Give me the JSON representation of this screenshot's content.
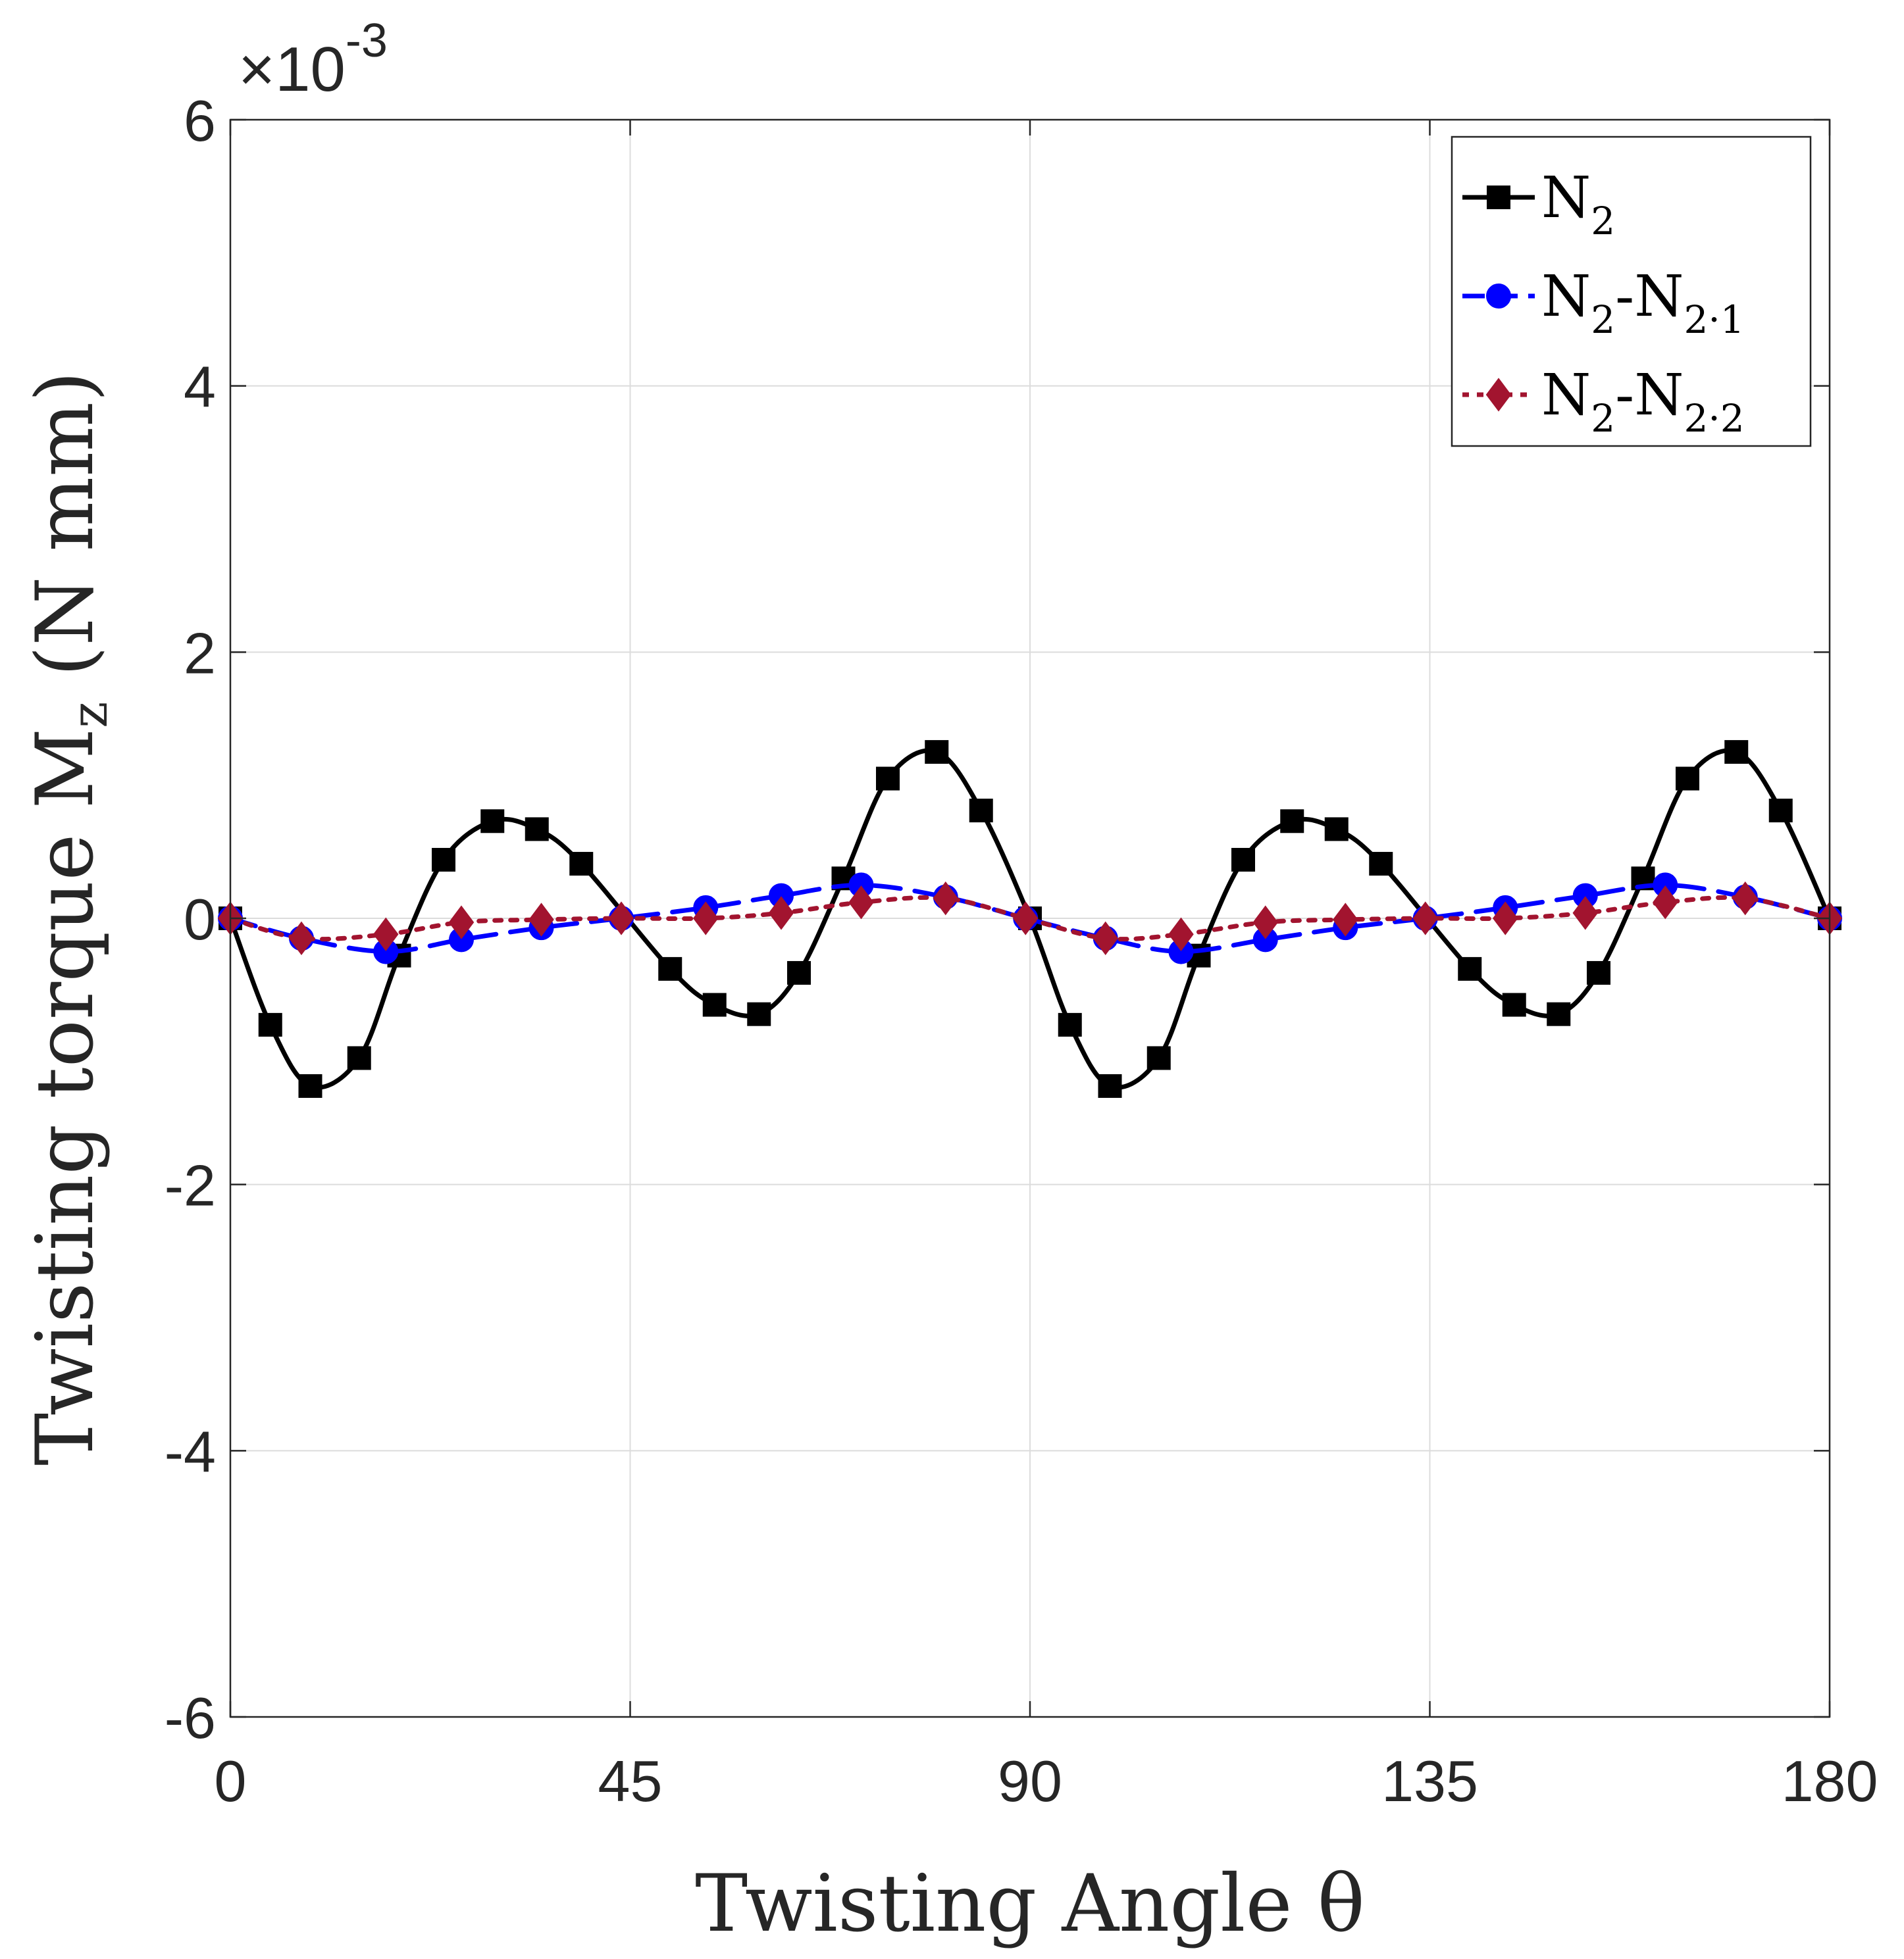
{
  "chart_data": {
    "type": "line",
    "title": "",
    "xlabel": "Twisting Angle θ",
    "ylabel": "Twisting torque M_z (N mm)",
    "ylabel_parts": {
      "prefix": "Twisting torque M",
      "sub": "z",
      "suffix": " (N mm)"
    },
    "x_exponent_label": {
      "base": "×10",
      "exp": "-3"
    },
    "xlim": [
      0,
      180
    ],
    "ylim": [
      -6,
      6
    ],
    "y_scale_factor": 0.001,
    "xticks": [
      0,
      45,
      90,
      135,
      180
    ],
    "xtick_labels": [
      "0",
      "45",
      "90",
      "135",
      "180"
    ],
    "yticks": [
      -6,
      -4,
      -2,
      0,
      2,
      4,
      6
    ],
    "ytick_labels": [
      "-6",
      "-4",
      "-2",
      "0",
      "2",
      "4",
      "6"
    ],
    "grid": true,
    "legend_position": "top-right",
    "series": [
      {
        "name": "N2",
        "label_parts": [
          {
            "t": "N"
          },
          {
            "t": "2",
            "sub": true
          }
        ],
        "color": "#000000",
        "line_style": "solid",
        "marker": "square",
        "x": [
          0,
          4.5,
          9,
          14.5,
          19,
          24,
          29.5,
          34.5,
          39.5,
          49.5,
          54.5,
          59.5,
          64,
          69,
          74,
          79.5,
          84.5,
          90,
          94.5,
          99,
          104.5,
          109,
          114,
          119.5,
          124.5,
          129.5,
          139.5,
          144.5,
          149.5,
          154,
          159,
          164,
          169.5,
          174.5,
          180
        ],
        "y": [
          0,
          -0.8,
          -1.26,
          -1.05,
          -0.28,
          0.44,
          0.73,
          0.67,
          0.41,
          -0.38,
          -0.65,
          -0.72,
          -0.41,
          0.3,
          1.05,
          1.25,
          0.81,
          0,
          -0.8,
          -1.26,
          -1.05,
          -0.28,
          0.44,
          0.73,
          0.67,
          0.41,
          -0.38,
          -0.65,
          -0.72,
          -0.41,
          0.3,
          1.05,
          1.25,
          0.81,
          0
        ]
      },
      {
        "name": "N2-N2·1",
        "label_parts": [
          {
            "t": "N"
          },
          {
            "t": "2",
            "sub": true
          },
          {
            "t": "-N"
          },
          {
            "t": "2·1",
            "sub": true
          }
        ],
        "color": "#0000ff",
        "line_style": "dashed",
        "marker": "circle",
        "x": [
          0,
          8,
          17.5,
          26,
          35,
          44,
          53.5,
          62,
          71,
          80.5,
          89.5,
          98.5,
          107,
          116.5,
          125.5,
          134.5,
          143.5,
          152.5,
          161.5,
          170.5,
          180
        ],
        "y": [
          0,
          -0.15,
          -0.25,
          -0.16,
          -0.07,
          0,
          0.08,
          0.17,
          0.25,
          0.16,
          0,
          -0.15,
          -0.25,
          -0.16,
          -0.07,
          0,
          0.08,
          0.17,
          0.25,
          0.16,
          0
        ]
      },
      {
        "name": "N2-N2·2",
        "label_parts": [
          {
            "t": "N"
          },
          {
            "t": "2",
            "sub": true
          },
          {
            "t": "-N"
          },
          {
            "t": "2·2",
            "sub": true
          }
        ],
        "color": "#a2142f",
        "line_style": "dotted",
        "marker": "diamond",
        "x": [
          0,
          8,
          17.5,
          26,
          35,
          44,
          53.5,
          62,
          71,
          80.5,
          89.5,
          98.5,
          107,
          116.5,
          125.5,
          134.5,
          143.5,
          152.5,
          161.5,
          170.5,
          180
        ],
        "y": [
          0,
          -0.15,
          -0.12,
          -0.03,
          -0.01,
          0,
          0,
          0.04,
          0.12,
          0.15,
          0,
          -0.15,
          -0.12,
          -0.03,
          -0.01,
          0,
          0,
          0.04,
          0.12,
          0.15,
          0
        ]
      }
    ]
  }
}
